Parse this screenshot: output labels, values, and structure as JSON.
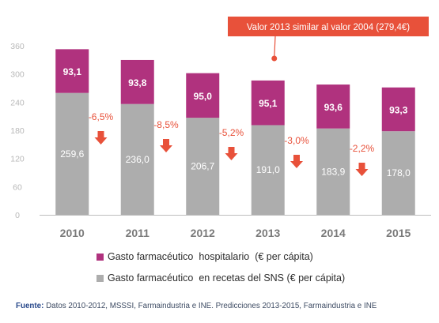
{
  "chart_data": {
    "type": "bar",
    "stacked": true,
    "categories": [
      "2010",
      "2011",
      "2012",
      "2013",
      "2014",
      "2015"
    ],
    "series": [
      {
        "name": "Gasto farmacéutico  en recetas del SNS (€ per cápita)",
        "values": [
          259.6,
          236.0,
          206.7,
          191.0,
          183.9,
          178.0
        ],
        "labels": [
          "259,6",
          "236,0",
          "206,7",
          "191,0",
          "183,9",
          "178,0"
        ],
        "color": "#adadad"
      },
      {
        "name": "Gasto farmacéutico  hospitalario  (€ per cápita)",
        "values": [
          93.1,
          93.8,
          95.0,
          95.1,
          93.6,
          93.3
        ],
        "labels": [
          "93,1",
          "93,8",
          "95,0",
          "95,1",
          "93,6",
          "93,3"
        ],
        "color": "#b0327e"
      }
    ],
    "changes": [
      "-6,5%",
      "-8,5%",
      "-5,2%",
      "-3,0%",
      "-2,2%"
    ],
    "change_color": "#e8513a",
    "ylim": [
      0,
      360
    ],
    "yticks": [
      0,
      60,
      120,
      180,
      240,
      300,
      360
    ],
    "ytick_labels": [
      "0",
      "60",
      "120",
      "180",
      "240",
      "300",
      "360"
    ],
    "grid": false,
    "legend_position": "bottom",
    "annotation": {
      "text": "Valor 2013 similar al valor 2004 (279,4€)",
      "target_category": "2013",
      "color": "#e8513a"
    }
  },
  "legend": {
    "hospital_label": "Gasto farmacéutico  hospitalario  (€ per cápita)",
    "recetas_label": "Gasto farmacéutico  en recetas del SNS (€ per cápita)"
  },
  "source": {
    "label": "Fuente:",
    "text": " Datos 2010-2012, MSSSI, Farmaindustria e INE. Predicciones 2013-2015, Farmaindustria e INE"
  }
}
